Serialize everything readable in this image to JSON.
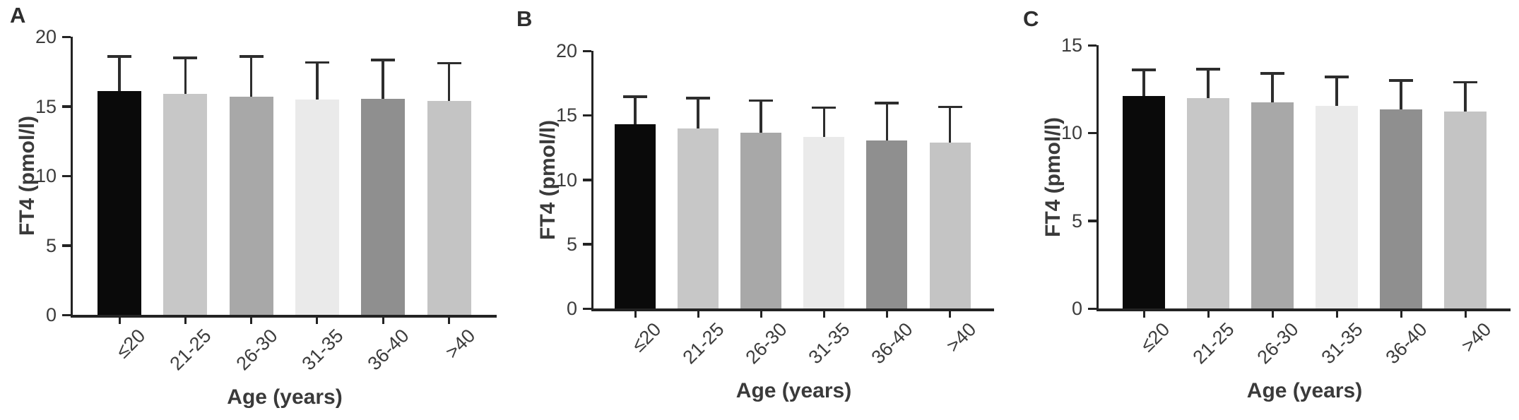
{
  "figure": {
    "bar_colors": [
      "#0a0a0a",
      "#c7c7c7",
      "#a8a8a8",
      "#eaeaea",
      "#8f8f8f",
      "#c4c4c4"
    ],
    "axis_color": "#232323",
    "error_bar_color": "#2d2d2d",
    "text_color": "#3c3c3c"
  },
  "chart_data": [
    {
      "type": "bar",
      "panel": "A",
      "categories": [
        "≤20",
        "21-25",
        "26-30",
        "31-35",
        "36-40",
        ">40"
      ],
      "values": [
        16.1,
        15.9,
        15.7,
        15.5,
        15.55,
        15.4
      ],
      "errors_upper": [
        2.5,
        2.6,
        2.9,
        2.65,
        2.8,
        2.7
      ],
      "xlabel": "Age (years)",
      "ylabel": "FT4 (pmol/l)",
      "ylim": [
        0,
        20
      ],
      "yticks": [
        0,
        5,
        10,
        15,
        20
      ],
      "grid": false,
      "legend": "none"
    },
    {
      "type": "bar",
      "panel": "B",
      "categories": [
        "≤20",
        "21-25",
        "26-30",
        "31-35",
        "36-40",
        ">40"
      ],
      "values": [
        14.3,
        14.0,
        13.65,
        13.3,
        13.05,
        12.85
      ],
      "errors_upper": [
        2.15,
        2.35,
        2.5,
        2.3,
        2.9,
        2.8
      ],
      "xlabel": "Age (years)",
      "ylabel": "FT4 (pmol/l)",
      "ylim": [
        0,
        20
      ],
      "yticks": [
        0,
        5,
        10,
        15,
        20
      ],
      "grid": false,
      "legend": "none"
    },
    {
      "type": "bar",
      "panel": "C",
      "categories": [
        "≤20",
        "21-25",
        "26-30",
        "31-35",
        "36-40",
        ">40"
      ],
      "values": [
        12.1,
        12.0,
        11.75,
        11.55,
        11.35,
        11.2
      ],
      "errors_upper": [
        1.5,
        1.65,
        1.65,
        1.65,
        1.65,
        1.7
      ],
      "xlabel": "Age (years)",
      "ylabel": "FT4 (pmol/l)",
      "ylim": [
        0,
        15
      ],
      "yticks": [
        0,
        5,
        10,
        15
      ],
      "grid": false,
      "legend": "none"
    }
  ]
}
